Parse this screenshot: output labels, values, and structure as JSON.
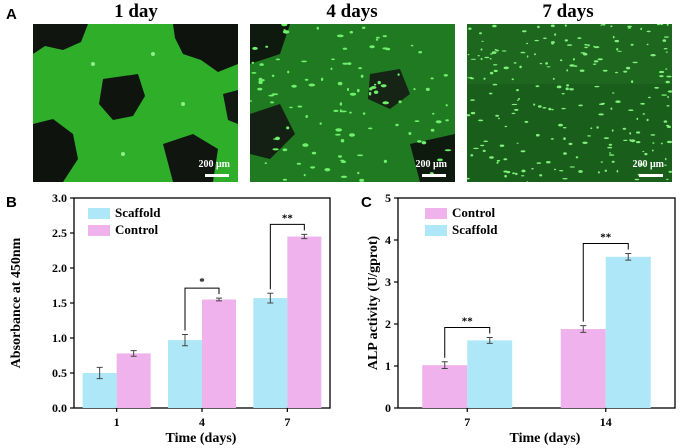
{
  "panels": {
    "A": {
      "letter": "A",
      "images": [
        {
          "title": "1 day",
          "scalebar": "200 μm"
        },
        {
          "title": "4 days",
          "scalebar": "200 μm"
        },
        {
          "title": "7 days",
          "scalebar": "200 μm"
        }
      ]
    },
    "B": {
      "letter": "B"
    },
    "C": {
      "letter": "C"
    }
  },
  "colors": {
    "scaffold": "#aee7f7",
    "control": "#f0b2ec"
  },
  "chart_data": [
    {
      "type": "bar",
      "panel": "B",
      "categories": [
        "1",
        "4",
        "7"
      ],
      "series": [
        {
          "name": "Scaffold",
          "values": [
            0.5,
            0.97,
            1.57
          ],
          "errors": [
            0.08,
            0.08,
            0.07
          ],
          "color": "#aee7f7"
        },
        {
          "name": "Control",
          "values": [
            0.78,
            1.55,
            2.45
          ],
          "errors": [
            0.04,
            0.02,
            0.03
          ],
          "color": "#f0b2ec"
        }
      ],
      "significance": [
        {
          "category": "4",
          "label": "*"
        },
        {
          "category": "7",
          "label": "**"
        }
      ],
      "xlabel": "Time (days)",
      "ylabel": "Absorbance at 450nm",
      "ylim": [
        0,
        3.0
      ],
      "yticks": [
        "0.0",
        "0.5",
        "1.0",
        "1.5",
        "2.0",
        "2.5",
        "3.0"
      ],
      "legend": "top-left"
    },
    {
      "type": "bar",
      "panel": "C",
      "categories": [
        "7",
        "14"
      ],
      "series": [
        {
          "name": "Control",
          "values": [
            1.02,
            1.88
          ],
          "errors": [
            0.08,
            0.08
          ],
          "color": "#f0b2ec"
        },
        {
          "name": "Scaffold",
          "values": [
            1.61,
            3.6
          ],
          "errors": [
            0.07,
            0.08
          ],
          "color": "#aee7f7"
        }
      ],
      "significance": [
        {
          "category": "7",
          "label": "**"
        },
        {
          "category": "14",
          "label": "**"
        }
      ],
      "xlabel": "Time (days)",
      "ylabel": "ALP activity (U/gprot)",
      "ylim": [
        0,
        5
      ],
      "yticks": [
        "0",
        "1",
        "2",
        "3",
        "4",
        "5"
      ],
      "legend": "top-left"
    }
  ]
}
